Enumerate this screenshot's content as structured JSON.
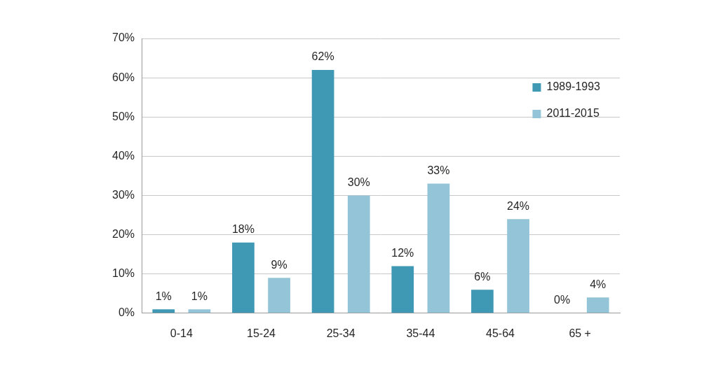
{
  "chart_data": {
    "type": "bar",
    "categories": [
      "0-14",
      "15-24",
      "25-34",
      "35-44",
      "45-64",
      "65 +"
    ],
    "series": [
      {
        "name": "1989-1993",
        "color": "#3f98b4",
        "values": [
          1,
          18,
          62,
          12,
          6,
          0
        ],
        "value_labels": [
          "1%",
          "18%",
          "62%",
          "12%",
          "6%",
          "0%"
        ]
      },
      {
        "name": "2011-2015",
        "color": "#93c4d7",
        "values": [
          1,
          9,
          30,
          33,
          24,
          4
        ],
        "value_labels": [
          "1%",
          "9%",
          "30%",
          "33%",
          "24%",
          "4%"
        ]
      }
    ],
    "ylim": [
      0,
      70
    ],
    "yticks": [
      {
        "value": 0,
        "label": "0%"
      },
      {
        "value": 10,
        "label": "10%"
      },
      {
        "value": 20,
        "label": "20%"
      },
      {
        "value": 30,
        "label": "30%"
      },
      {
        "value": 40,
        "label": "40%"
      },
      {
        "value": 50,
        "label": "50%"
      },
      {
        "value": 60,
        "label": "60%"
      },
      {
        "value": 70,
        "label": "70%"
      }
    ],
    "grid": true,
    "legend": "upper right",
    "data_labels": true
  }
}
